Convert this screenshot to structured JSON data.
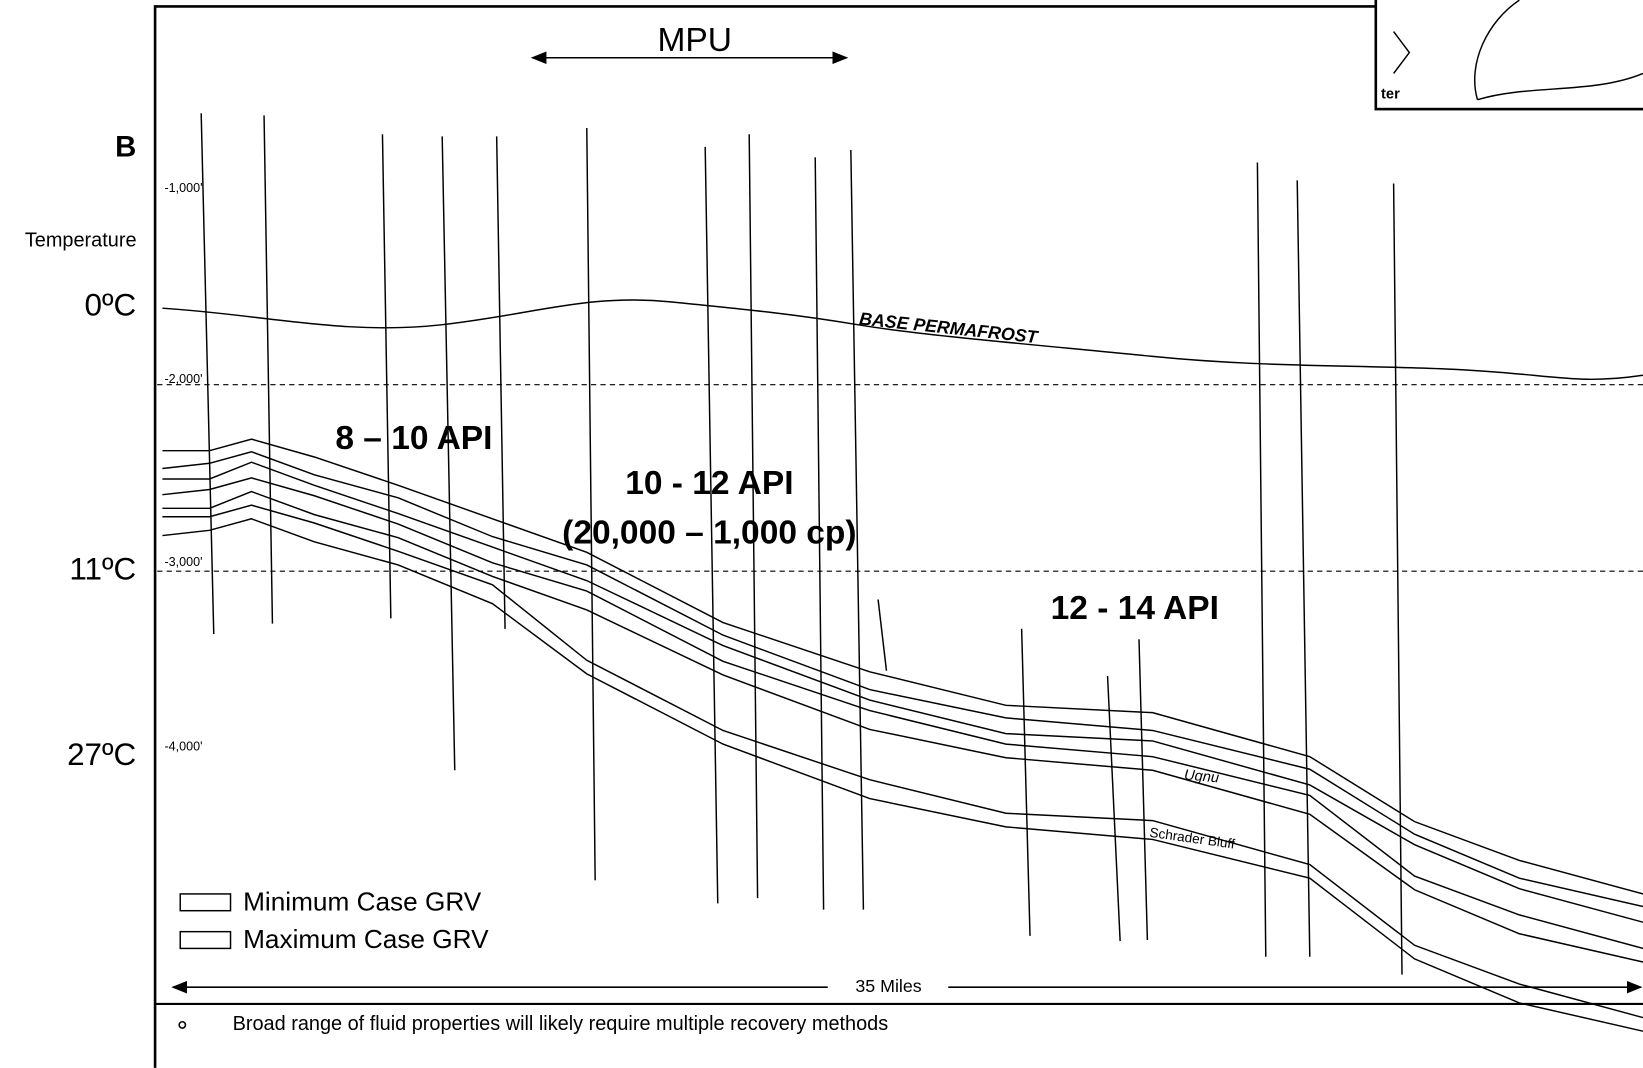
{
  "header": {
    "section_label": "B",
    "temperature_label": "Temperature",
    "inset_text": "ter"
  },
  "depths": [
    "-1,000'",
    "-2,000'",
    "-3,000'",
    "-4,000'"
  ],
  "temperatures": [
    "0ºC",
    "11ºC",
    "27ºC"
  ],
  "labels": {
    "mpu": "MPU",
    "permafrost": "BASE PERMAFROST",
    "api_1": "8 – 10 API",
    "api_2": "10 - 12 API",
    "viscosity": "(20,000 – 1,000 cp)",
    "api_3": "12 - 14 API",
    "ugnu": "Ugnu",
    "schrader": "Schrader Bluff",
    "scale": "35 Miles"
  },
  "legend": [
    "Minimum Case GRV",
    "Maximum Case GRV"
  ],
  "bullets": [
    "Broad range of fluid properties will likely require multiple recovery methods"
  ]
}
